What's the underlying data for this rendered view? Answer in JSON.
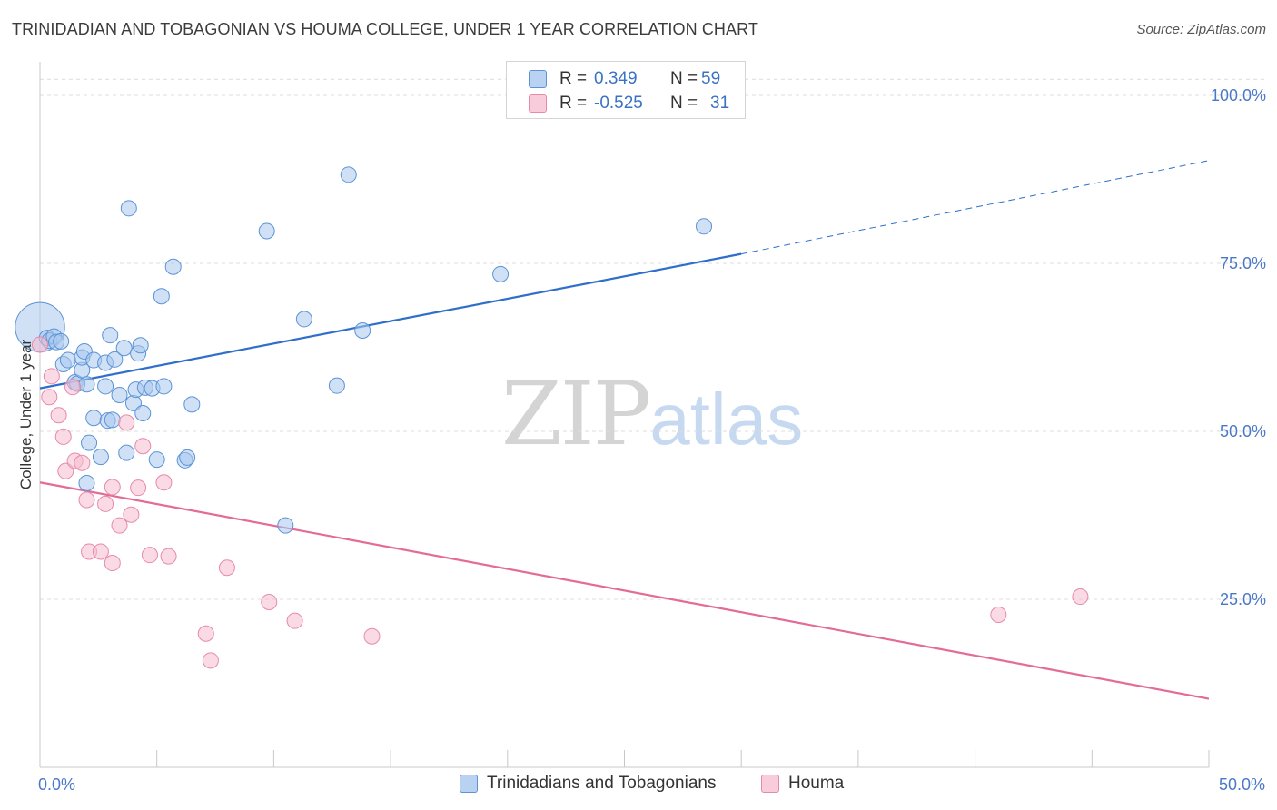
{
  "header": {
    "title": "TRINIDADIAN AND TOBAGONIAN VS HOUMA COLLEGE, UNDER 1 YEAR CORRELATION CHART",
    "source": "Source: ZipAtlas.com"
  },
  "watermark": {
    "zip": "ZIP",
    "atlas": "atlas"
  },
  "colors": {
    "blue_fill": "#a9c8ee",
    "blue_stroke": "#5b93d6",
    "blue_line": "#2f6fcb",
    "pink_fill": "#f6bcd0",
    "pink_stroke": "#e78aa9",
    "pink_line": "#e46b97",
    "grid": "#dcdcdc",
    "tick_label": "#4a78c8"
  },
  "legend": {
    "rows": [
      {
        "r_label": "R =",
        "r_value": "0.349",
        "n_label": "N =",
        "n_value": "59"
      },
      {
        "r_label": "R =",
        "r_value": "-0.525",
        "n_label": "N =",
        "n_value": "31"
      }
    ]
  },
  "bottom_legend": [
    "Trinidadians and Tobagonians",
    "Houma"
  ],
  "chart_data": {
    "type": "scatter",
    "title": "TRINIDADIAN AND TOBAGONIAN VS HOUMA COLLEGE, UNDER 1 YEAR CORRELATION CHART",
    "xlabel": "",
    "ylabel": "College, Under 1 year",
    "xlim": [
      0,
      50
    ],
    "ylim": [
      0,
      105
    ],
    "x_tick_labels": [
      "0.0%",
      "50.0%"
    ],
    "y_ticks": [
      25,
      50,
      75,
      100
    ],
    "y_tick_labels": [
      "25.0%",
      "50.0%",
      "75.0%",
      "100.0%"
    ],
    "grid": true,
    "series": [
      {
        "name": "Trinidadians and Tobagonians",
        "color": "blue",
        "r": 0.349,
        "n": 59,
        "trend": {
          "x0": 0,
          "y0": 56.4,
          "x1": 30,
          "y1": 76.4,
          "dash_to_x": 50,
          "dash_to_y": 90.3
        },
        "points": [
          [
            0.0,
            65.5,
            3.2
          ],
          [
            0.3,
            63.9,
            1
          ],
          [
            0.4,
            63.5,
            1
          ],
          [
            0.6,
            64.1,
            1
          ],
          [
            0.7,
            63.3,
            1
          ],
          [
            0.9,
            63.4,
            1
          ],
          [
            1.0,
            60.0,
            1
          ],
          [
            1.2,
            60.6,
            1
          ],
          [
            1.5,
            57.3,
            1
          ],
          [
            1.6,
            57.1,
            1
          ],
          [
            1.8,
            59.1,
            1
          ],
          [
            1.8,
            61.0,
            1
          ],
          [
            1.9,
            61.9,
            1
          ],
          [
            2.0,
            57.0,
            1
          ],
          [
            2.0,
            42.3,
            1
          ],
          [
            2.1,
            48.3,
            1
          ],
          [
            2.3,
            52.0,
            1
          ],
          [
            2.3,
            60.6,
            1
          ],
          [
            2.6,
            46.2,
            1
          ],
          [
            2.8,
            56.7,
            1
          ],
          [
            2.8,
            60.2,
            1
          ],
          [
            2.9,
            51.6,
            1
          ],
          [
            3.0,
            64.3,
            1
          ],
          [
            3.1,
            51.7,
            1
          ],
          [
            3.2,
            60.7,
            1
          ],
          [
            3.4,
            55.4,
            1
          ],
          [
            3.6,
            62.4,
            1
          ],
          [
            3.7,
            46.8,
            1
          ],
          [
            3.8,
            83.2,
            1
          ],
          [
            4.0,
            54.2,
            1
          ],
          [
            4.1,
            56.2,
            1
          ],
          [
            4.2,
            61.6,
            1
          ],
          [
            4.3,
            62.8,
            1
          ],
          [
            4.4,
            52.7,
            1
          ],
          [
            4.5,
            56.5,
            1
          ],
          [
            4.8,
            56.4,
            1
          ],
          [
            5.0,
            45.8,
            1
          ],
          [
            5.2,
            70.1,
            1
          ],
          [
            5.3,
            56.7,
            1
          ],
          [
            5.7,
            74.5,
            1
          ],
          [
            6.2,
            45.7,
            1
          ],
          [
            6.3,
            46.1,
            1
          ],
          [
            6.5,
            54.0,
            1
          ],
          [
            9.7,
            79.8,
            1
          ],
          [
            10.5,
            36.0,
            1
          ],
          [
            11.3,
            66.7,
            1
          ],
          [
            12.7,
            56.8,
            1
          ],
          [
            13.2,
            88.2,
            1
          ],
          [
            13.8,
            65.0,
            1
          ],
          [
            19.7,
            73.4,
            1
          ],
          [
            28.4,
            80.5,
            1
          ]
        ]
      },
      {
        "name": "Houma",
        "color": "pink",
        "r": -0.525,
        "n": 31,
        "trend": {
          "x0": 0,
          "y0": 42.4,
          "x1": 50,
          "y1": 10.2
        },
        "points": [
          [
            0.0,
            62.9,
            1
          ],
          [
            0.4,
            55.1,
            1
          ],
          [
            0.5,
            58.2,
            1
          ],
          [
            0.8,
            52.4,
            1
          ],
          [
            1.0,
            49.2,
            1
          ],
          [
            1.1,
            44.1,
            1
          ],
          [
            1.4,
            56.6,
            1
          ],
          [
            1.5,
            45.6,
            1
          ],
          [
            1.8,
            45.3,
            1
          ],
          [
            2.0,
            39.8,
            1
          ],
          [
            2.1,
            32.1,
            1
          ],
          [
            2.6,
            32.1,
            1
          ],
          [
            2.8,
            39.2,
            1
          ],
          [
            3.1,
            41.7,
            1
          ],
          [
            3.1,
            30.4,
            1
          ],
          [
            3.4,
            36.0,
            1
          ],
          [
            3.7,
            51.3,
            1
          ],
          [
            3.9,
            37.6,
            1
          ],
          [
            4.2,
            41.6,
            1
          ],
          [
            4.4,
            47.8,
            1
          ],
          [
            4.7,
            31.6,
            1
          ],
          [
            5.3,
            42.4,
            1
          ],
          [
            5.5,
            31.4,
            1
          ],
          [
            7.1,
            19.9,
            1
          ],
          [
            7.3,
            15.9,
            1
          ],
          [
            8.0,
            29.7,
            1
          ],
          [
            9.8,
            24.6,
            1
          ],
          [
            10.9,
            21.8,
            1
          ],
          [
            14.2,
            19.5,
            1
          ],
          [
            41.0,
            22.7,
            1
          ],
          [
            44.5,
            25.4,
            1
          ]
        ]
      }
    ]
  }
}
